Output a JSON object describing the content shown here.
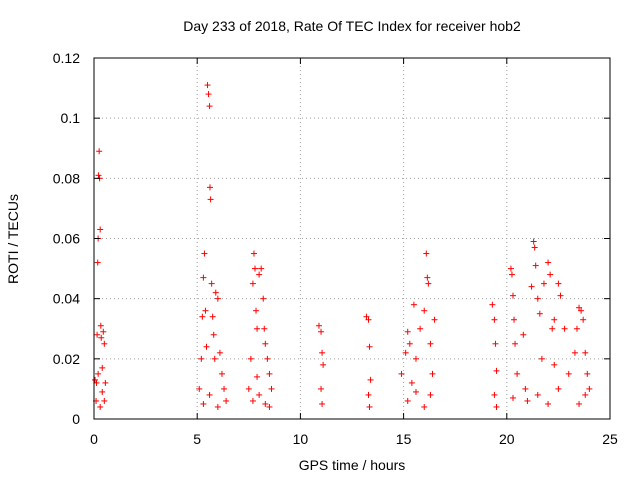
{
  "chart_data": {
    "type": "scatter",
    "title": "Day 233 of 2018, Rate Of TEC Index for receiver hob2",
    "xlabel": "GPS time / hours",
    "ylabel": "ROTI / TECUs",
    "xlim": [
      0,
      25
    ],
    "ylim": [
      0,
      0.12
    ],
    "xticks": [
      "0",
      "5",
      "10",
      "15",
      "20",
      "25"
    ],
    "yticks": [
      "0",
      "0.02",
      "0.04",
      "0.06",
      "0.08",
      "0.1",
      "0.12"
    ],
    "grid": true,
    "marker": "plus",
    "color": "#ff0000",
    "series": [
      {
        "points": [
          [
            0.05,
            0.013
          ],
          [
            0.1,
            0.006
          ],
          [
            0.12,
            0.012
          ],
          [
            0.15,
            0.028
          ],
          [
            0.18,
            0.052
          ],
          [
            0.2,
            0.06
          ],
          [
            0.22,
            0.081
          ],
          [
            0.25,
            0.089
          ],
          [
            0.27,
            0.08
          ],
          [
            0.3,
            0.063
          ],
          [
            0.33,
            0.031
          ],
          [
            0.35,
            0.027
          ],
          [
            0.4,
            0.017
          ],
          [
            0.45,
            0.029
          ],
          [
            0.5,
            0.025
          ],
          [
            0.55,
            0.012
          ],
          [
            0.3,
            0.004
          ],
          [
            0.4,
            0.009
          ],
          [
            0.2,
            0.015
          ],
          [
            0.5,
            0.006
          ],
          [
            5.1,
            0.01
          ],
          [
            5.2,
            0.02
          ],
          [
            5.25,
            0.034
          ],
          [
            5.3,
            0.047
          ],
          [
            5.35,
            0.055
          ],
          [
            5.4,
            0.036
          ],
          [
            5.45,
            0.024
          ],
          [
            5.5,
            0.111
          ],
          [
            5.55,
            0.108
          ],
          [
            5.6,
            0.104
          ],
          [
            5.62,
            0.077
          ],
          [
            5.65,
            0.073
          ],
          [
            5.7,
            0.045
          ],
          [
            5.75,
            0.034
          ],
          [
            5.8,
            0.028
          ],
          [
            5.85,
            0.02
          ],
          [
            5.9,
            0.042
          ],
          [
            6.0,
            0.04
          ],
          [
            6.1,
            0.022
          ],
          [
            6.2,
            0.015
          ],
          [
            6.3,
            0.01
          ],
          [
            6.4,
            0.006
          ],
          [
            5.3,
            0.005
          ],
          [
            5.6,
            0.008
          ],
          [
            6.0,
            0.004
          ],
          [
            7.5,
            0.01
          ],
          [
            7.6,
            0.02
          ],
          [
            7.7,
            0.045
          ],
          [
            7.75,
            0.055
          ],
          [
            7.8,
            0.05
          ],
          [
            7.85,
            0.036
          ],
          [
            7.9,
            0.03
          ],
          [
            8.0,
            0.048
          ],
          [
            8.1,
            0.05
          ],
          [
            8.2,
            0.04
          ],
          [
            8.25,
            0.03
          ],
          [
            8.3,
            0.025
          ],
          [
            8.4,
            0.02
          ],
          [
            8.5,
            0.015
          ],
          [
            8.6,
            0.01
          ],
          [
            7.7,
            0.006
          ],
          [
            8.0,
            0.008
          ],
          [
            8.3,
            0.005
          ],
          [
            8.5,
            0.004
          ],
          [
            7.9,
            0.014
          ],
          [
            10.9,
            0.031
          ],
          [
            11.0,
            0.029
          ],
          [
            11.05,
            0.022
          ],
          [
            11.1,
            0.018
          ],
          [
            11.0,
            0.01
          ],
          [
            11.05,
            0.005
          ],
          [
            13.2,
            0.034
          ],
          [
            13.3,
            0.033
          ],
          [
            13.35,
            0.024
          ],
          [
            13.4,
            0.013
          ],
          [
            13.3,
            0.008
          ],
          [
            13.35,
            0.004
          ],
          [
            14.9,
            0.015
          ],
          [
            15.1,
            0.022
          ],
          [
            15.2,
            0.029
          ],
          [
            15.3,
            0.025
          ],
          [
            15.5,
            0.038
          ],
          [
            15.6,
            0.02
          ],
          [
            15.8,
            0.03
          ],
          [
            16.0,
            0.036
          ],
          [
            16.1,
            0.055
          ],
          [
            16.15,
            0.047
          ],
          [
            16.2,
            0.045
          ],
          [
            16.3,
            0.025
          ],
          [
            16.4,
            0.015
          ],
          [
            16.5,
            0.033
          ],
          [
            15.2,
            0.006
          ],
          [
            15.6,
            0.009
          ],
          [
            16.0,
            0.004
          ],
          [
            16.3,
            0.008
          ],
          [
            15.4,
            0.012
          ],
          [
            19.3,
            0.038
          ],
          [
            19.4,
            0.033
          ],
          [
            19.45,
            0.025
          ],
          [
            19.5,
            0.016
          ],
          [
            19.4,
            0.008
          ],
          [
            19.5,
            0.004
          ],
          [
            20.2,
            0.05
          ],
          [
            20.25,
            0.048
          ],
          [
            20.3,
            0.041
          ],
          [
            20.35,
            0.033
          ],
          [
            20.4,
            0.025
          ],
          [
            20.5,
            0.015
          ],
          [
            20.3,
            0.007
          ],
          [
            20.8,
            0.028
          ],
          [
            20.9,
            0.01
          ],
          [
            21.0,
            0.006
          ],
          [
            21.2,
            0.044
          ],
          [
            21.3,
            0.059
          ],
          [
            21.35,
            0.057
          ],
          [
            21.4,
            0.051
          ],
          [
            21.5,
            0.04
          ],
          [
            21.6,
            0.035
          ],
          [
            21.8,
            0.045
          ],
          [
            22.0,
            0.052
          ],
          [
            22.1,
            0.048
          ],
          [
            22.2,
            0.03
          ],
          [
            22.3,
            0.033
          ],
          [
            22.5,
            0.045
          ],
          [
            22.6,
            0.041
          ],
          [
            22.8,
            0.03
          ],
          [
            23.0,
            0.015
          ],
          [
            21.5,
            0.008
          ],
          [
            22.0,
            0.005
          ],
          [
            22.5,
            0.01
          ],
          [
            21.7,
            0.02
          ],
          [
            22.3,
            0.018
          ],
          [
            23.3,
            0.022
          ],
          [
            23.4,
            0.03
          ],
          [
            23.5,
            0.037
          ],
          [
            23.6,
            0.036
          ],
          [
            23.7,
            0.033
          ],
          [
            23.8,
            0.022
          ],
          [
            23.9,
            0.015
          ],
          [
            24.0,
            0.01
          ],
          [
            23.5,
            0.005
          ],
          [
            23.8,
            0.008
          ]
        ]
      }
    ]
  }
}
